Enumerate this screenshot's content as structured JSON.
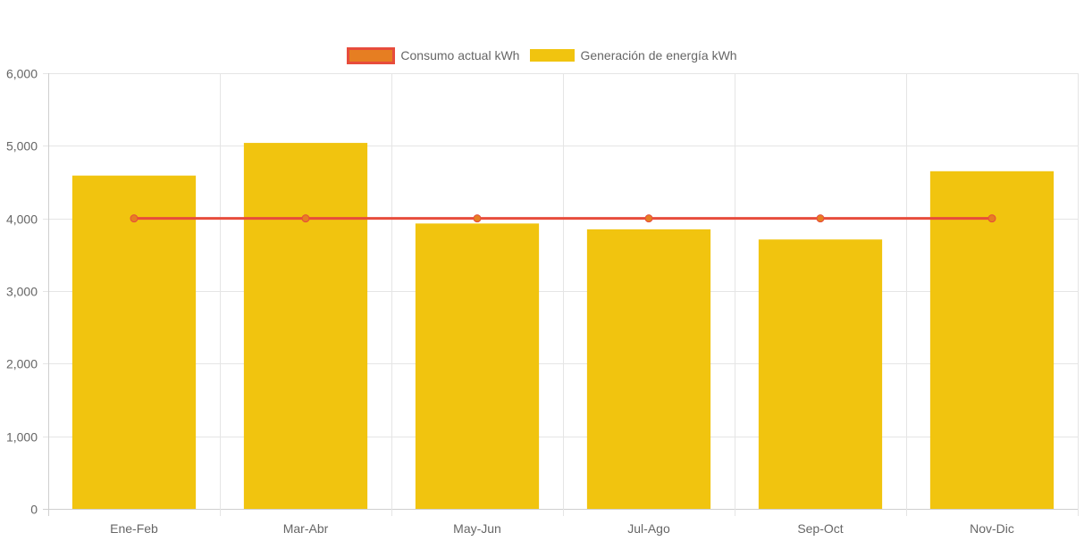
{
  "chart_data": {
    "type": "bar",
    "categories": [
      "Ene-Feb",
      "Mar-Abr",
      "May-Jun",
      "Jul-Ago",
      "Sep-Oct",
      "Nov-Dic"
    ],
    "series": [
      {
        "name": "Consumo actual kWh",
        "type": "line",
        "values": [
          4000,
          4000,
          4000,
          4000,
          4000,
          4000
        ],
        "color": "#e74c3c",
        "point_color": "#e67e22"
      },
      {
        "name": "Generación de energía kWh",
        "type": "bar",
        "values": [
          4590,
          5040,
          3930,
          3850,
          3710,
          4650
        ],
        "color": "#f1c40f"
      }
    ],
    "ylim": [
      0,
      6000
    ],
    "yticks": [
      0,
      1000,
      2000,
      3000,
      4000,
      5000,
      6000
    ],
    "ytick_labels": [
      "0",
      "1,000",
      "2,000",
      "3,000",
      "4,000",
      "5,000",
      "6,000"
    ],
    "grid": true,
    "legend_position": "top-center"
  }
}
